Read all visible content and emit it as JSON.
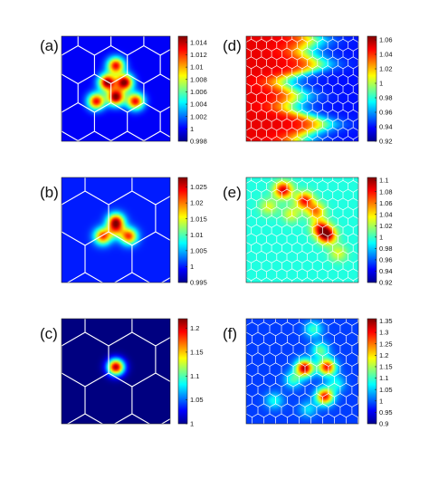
{
  "chart_data": [
    {
      "panel": "(a)",
      "type": "heatmap",
      "colorbar": {
        "range": [
          0.998,
          1.015
        ],
        "ticks": [
          "1.014",
          "1.012",
          "1.01",
          "1.008",
          "1.006",
          "1.004",
          "1.002",
          "1",
          "0.998"
        ]
      },
      "field": {
        "background": 1.0,
        "hotspots": [
          {
            "x": 0.42,
            "y": 0.44,
            "a": 1.015
          },
          {
            "x": 0.58,
            "y": 0.44,
            "a": 1.015
          },
          {
            "x": 0.5,
            "y": 0.58,
            "a": 1.015
          },
          {
            "x": 0.5,
            "y": 0.28,
            "a": 1.013
          },
          {
            "x": 0.32,
            "y": 0.62,
            "a": 1.013
          },
          {
            "x": 0.68,
            "y": 0.62,
            "a": 1.013
          }
        ]
      }
    },
    {
      "panel": "(b)",
      "type": "heatmap",
      "colorbar": {
        "range": [
          0.995,
          1.028
        ],
        "ticks": [
          "1.025",
          "1.02",
          "1.015",
          "1.01",
          "1.005",
          "1",
          "0.995"
        ]
      },
      "field": {
        "background": 1.0,
        "hotspots": [
          {
            "x": 0.5,
            "y": 0.42,
            "a": 1.024
          },
          {
            "x": 0.38,
            "y": 0.56,
            "a": 1.022
          },
          {
            "x": 0.62,
            "y": 0.56,
            "a": 1.022
          },
          {
            "x": 0.5,
            "y": 0.5,
            "a": 1.012
          }
        ]
      }
    },
    {
      "panel": "(c)",
      "type": "heatmap",
      "colorbar": {
        "range": [
          1.0,
          1.22
        ],
        "ticks": [
          "1.2",
          "1.15",
          "1.1",
          "1.05",
          "1"
        ]
      },
      "field": {
        "background": 1.0,
        "hotspots": [
          {
            "x": 0.5,
            "y": 0.46,
            "a": 1.21
          }
        ]
      }
    },
    {
      "panel": "(d)",
      "type": "heatmap",
      "colorbar": {
        "range": [
          0.92,
          1.065
        ],
        "ticks": [
          "1.06",
          "1.04",
          "1.02",
          "1",
          "0.98",
          "0.96",
          "0.94",
          "0.92"
        ]
      },
      "field": {
        "gradient": {
          "left": 1.05,
          "right": 0.94
        }
      }
    },
    {
      "panel": "(e)",
      "type": "heatmap",
      "colorbar": {
        "range": [
          0.92,
          1.105
        ],
        "ticks": [
          "1.1",
          "1.08",
          "1.06",
          "1.04",
          "1.02",
          "1",
          "0.98",
          "0.96",
          "0.94",
          "0.92"
        ]
      },
      "field": {
        "background": 0.995,
        "hotspots": [
          {
            "x": 0.33,
            "y": 0.12,
            "a": 1.09
          },
          {
            "x": 0.52,
            "y": 0.22,
            "a": 1.08
          },
          {
            "x": 0.62,
            "y": 0.32,
            "a": 1.06
          },
          {
            "x": 0.72,
            "y": 0.55,
            "a": 1.1
          },
          {
            "x": 0.66,
            "y": 0.48,
            "a": 1.07
          },
          {
            "x": 0.4,
            "y": 0.35,
            "a": 1.03
          },
          {
            "x": 0.2,
            "y": 0.28,
            "a": 1.03
          },
          {
            "x": 0.82,
            "y": 0.72,
            "a": 1.03
          }
        ]
      }
    },
    {
      "panel": "(f)",
      "type": "heatmap",
      "colorbar": {
        "range": [
          0.9,
          1.36
        ],
        "ticks": [
          "1.35",
          "1.3",
          "1.25",
          "1.2",
          "1.15",
          "1.1",
          "1.05",
          "1",
          "0.95",
          "0.9"
        ]
      },
      "field": {
        "background": 0.985,
        "hotspots": [
          {
            "x": 0.52,
            "y": 0.47,
            "a": 1.34
          },
          {
            "x": 0.72,
            "y": 0.46,
            "a": 1.3
          },
          {
            "x": 0.7,
            "y": 0.74,
            "a": 1.3
          },
          {
            "x": 0.66,
            "y": 0.3,
            "a": 1.12
          },
          {
            "x": 0.6,
            "y": 0.1,
            "a": 1.1
          },
          {
            "x": 0.42,
            "y": 0.58,
            "a": 1.1
          },
          {
            "x": 0.25,
            "y": 0.78,
            "a": 1.08
          },
          {
            "x": 0.8,
            "y": 0.62,
            "a": 1.08
          },
          {
            "x": 0.55,
            "y": 0.86,
            "a": 1.06
          }
        ]
      }
    }
  ]
}
